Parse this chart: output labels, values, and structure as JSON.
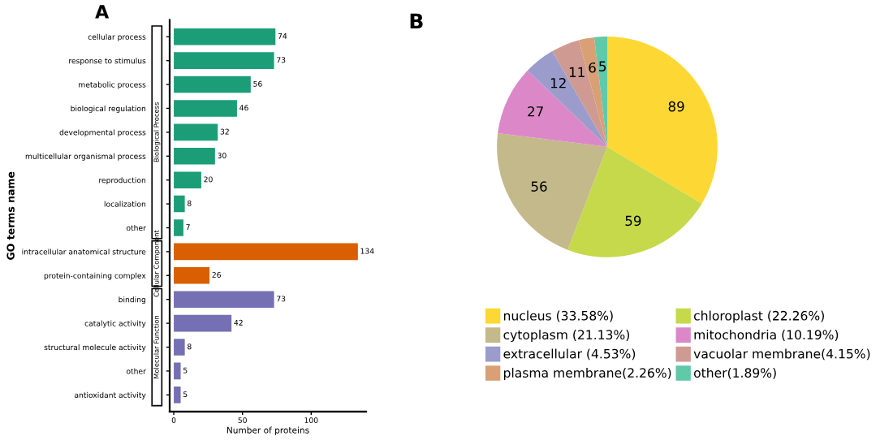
{
  "chart_data": [
    {
      "type": "bar",
      "title": "A",
      "orientation": "horizontal",
      "xlabel": "Number of proteins",
      "ylabel": "GO terms name",
      "categories": [
        "cellular process",
        "response to stimulus",
        "metabolic process",
        "biological regulation",
        "developmental process",
        "multicellular organismal process",
        "reproduction",
        "localization",
        "other",
        "intracellular anatomical structure",
        "protein-containing complex",
        "binding",
        "catalytic activity",
        "structural molecule activity",
        "other",
        "antioxidant activity"
      ],
      "values": [
        74,
        73,
        56,
        46,
        32,
        30,
        20,
        8,
        7,
        134,
        26,
        73,
        42,
        8,
        5,
        5
      ],
      "colors": [
        "#1b9e77",
        "#1b9e77",
        "#1b9e77",
        "#1b9e77",
        "#1b9e77",
        "#1b9e77",
        "#1b9e77",
        "#1b9e77",
        "#1b9e77",
        "#d95f02",
        "#d95f02",
        "#7570b3",
        "#7570b3",
        "#7570b3",
        "#7570b3",
        "#7570b3"
      ],
      "annotations": [
        "Biological Process",
        "Cellular Component",
        "Molecular Function"
      ],
      "xlim": [
        -3,
        140
      ],
      "xticks": [
        0,
        50,
        100
      ],
      "data_labels": true,
      "grid": false
    },
    {
      "type": "pie",
      "title": "B",
      "categories": [
        "nucleus (33.58%)",
        "chloroplast (22.26%)",
        "cytoplasm (21.13%)",
        "mitochondria (10.19%)",
        "extracellular (4.53%)",
        "vacuolar membrane(4.15%)",
        "plasma membrane(2.26%)",
        "other(1.89%)"
      ],
      "values": [
        89,
        59,
        56,
        27,
        12,
        11,
        6,
        5
      ],
      "colors": [
        "#fdd835",
        "#c5d94a",
        "#c4b98a",
        "#dc88c8",
        "#9b9ccc",
        "#cf9a92",
        "#d9a075",
        "#5fc9a8"
      ],
      "data_labels": true,
      "legend": "bottom"
    }
  ]
}
